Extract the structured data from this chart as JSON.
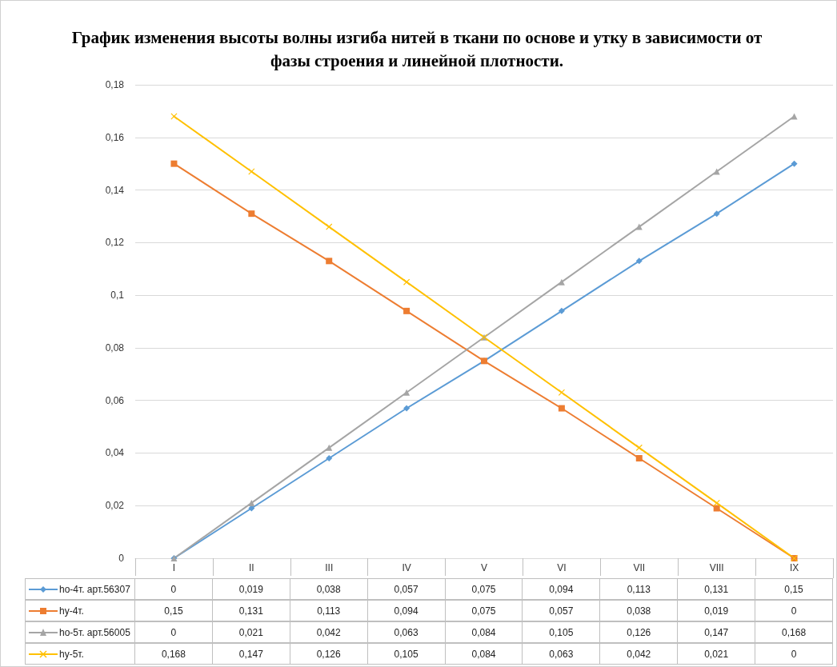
{
  "chart_data": {
    "type": "line",
    "title": "График изменения высоты волны изгиба нитей в ткани по основе и утку в зависимости от фазы строения и линейной плотности.",
    "categories": [
      "I",
      "II",
      "III",
      "IV",
      "V",
      "VI",
      "VII",
      "VIII",
      "IX"
    ],
    "series": [
      {
        "name": "ho-4т. арт.56307",
        "color": "#5b9bd5",
        "marker": "diamond",
        "values": [
          0,
          0.019,
          0.038,
          0.057,
          0.075,
          0.094,
          0.113,
          0.131,
          0.15
        ],
        "value_labels": [
          "0",
          "0,019",
          "0,038",
          "0,057",
          "0,075",
          "0,094",
          "0,113",
          "0,131",
          "0,15"
        ]
      },
      {
        "name": "hy-4т.",
        "color": "#ed7d31",
        "marker": "square",
        "values": [
          0.15,
          0.131,
          0.113,
          0.094,
          0.075,
          0.057,
          0.038,
          0.019,
          0
        ],
        "value_labels": [
          "0,15",
          "0,131",
          "0,113",
          "0,094",
          "0,075",
          "0,057",
          "0,038",
          "0,019",
          "0"
        ]
      },
      {
        "name": "ho-5т. арт.56005",
        "color": "#a5a5a5",
        "marker": "triangle",
        "values": [
          0,
          0.021,
          0.042,
          0.063,
          0.084,
          0.105,
          0.126,
          0.147,
          0.168
        ],
        "value_labels": [
          "0",
          "0,021",
          "0,042",
          "0,063",
          "0,084",
          "0,105",
          "0,126",
          "0,147",
          "0,168"
        ]
      },
      {
        "name": "hy-5т.",
        "color": "#ffc000",
        "marker": "cross",
        "values": [
          0.168,
          0.147,
          0.126,
          0.105,
          0.084,
          0.063,
          0.042,
          0.021,
          0
        ],
        "value_labels": [
          "0,168",
          "0,147",
          "0,126",
          "0,105",
          "0,084",
          "0,063",
          "0,042",
          "0,021",
          "0"
        ]
      }
    ],
    "ylim": [
      0,
      0.18
    ],
    "yticks": [
      0,
      {
        "value": 0.02,
        "label": "0,02"
      },
      {
        "value": 0.04,
        "label": "0,04"
      },
      {
        "value": 0.06,
        "label": "0,06"
      },
      {
        "value": 0.08,
        "label": "0,08"
      },
      {
        "value": 0.1,
        "label": "0,1"
      },
      {
        "value": 0.12,
        "label": "0,12"
      },
      {
        "value": 0.14,
        "label": "0,14"
      },
      {
        "value": 0.16,
        "label": "0,16"
      },
      {
        "value": 0.18,
        "label": "0,18"
      }
    ],
    "grid": "y",
    "legend": "bottom",
    "line_style": "solid"
  }
}
